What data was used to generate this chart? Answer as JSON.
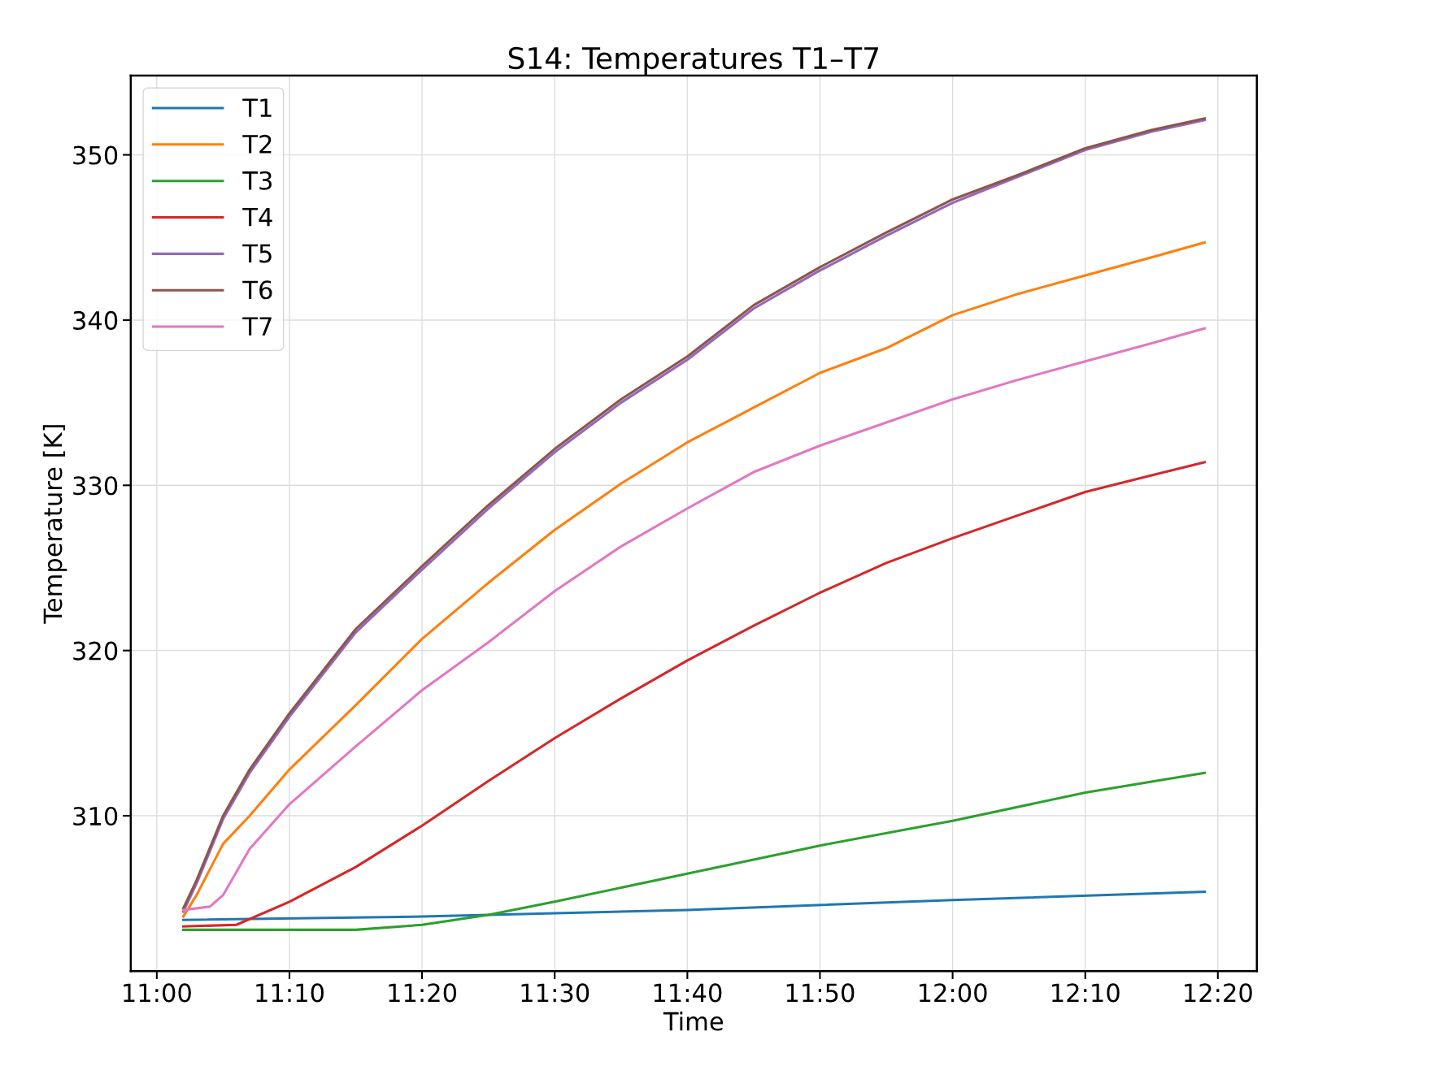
{
  "chart_data": {
    "type": "line",
    "title": "S14: Temperatures T1–T7",
    "xlabel": "Time",
    "ylabel": "Temperature [K]",
    "xlim": [
      10.9673,
      12.3823
    ],
    "ylim": [
      300.6,
      354.8
    ],
    "xticks": [
      {
        "value": 11.0,
        "label": "11:00"
      },
      {
        "value": 11.1667,
        "label": "11:10"
      },
      {
        "value": 11.3333,
        "label": "11:20"
      },
      {
        "value": 11.5,
        "label": "11:30"
      },
      {
        "value": 11.6667,
        "label": "11:40"
      },
      {
        "value": 11.8333,
        "label": "11:50"
      },
      {
        "value": 12.0,
        "label": "12:00"
      },
      {
        "value": 12.1667,
        "label": "12:10"
      },
      {
        "value": 12.3333,
        "label": "12:20"
      }
    ],
    "yticks": [
      310,
      320,
      330,
      340,
      350
    ],
    "grid": true,
    "legend": "top left",
    "marker": "none",
    "line_style": "solid",
    "series": [
      {
        "name": "T1",
        "color": "#1f77b4",
        "x": [
          11.0333,
          11.3333,
          11.6667,
          12.0,
          12.3167
        ],
        "values": [
          303.7,
          303.9,
          304.3,
          304.9,
          305.4
        ]
      },
      {
        "name": "T2",
        "color": "#ff7f0e",
        "x": [
          11.0333,
          11.05,
          11.0833,
          11.1167,
          11.1667,
          11.25,
          11.3333,
          11.4167,
          11.5,
          11.5833,
          11.6667,
          11.75,
          11.8333,
          11.9167,
          12.0,
          12.0833,
          12.1667,
          12.25,
          12.3167
        ],
        "values": [
          303.9,
          305.2,
          308.3,
          310.0,
          312.8,
          316.7,
          320.7,
          324.1,
          327.3,
          330.1,
          332.6,
          334.7,
          336.8,
          338.3,
          340.3,
          341.6,
          342.7,
          343.8,
          344.7
        ]
      },
      {
        "name": "T3",
        "color": "#2ca02c",
        "x": [
          11.0333,
          11.25,
          11.3333,
          11.4167,
          11.5,
          11.6667,
          11.8333,
          12.0,
          12.1667,
          12.3167
        ],
        "values": [
          303.1,
          303.1,
          303.4,
          304.0,
          304.8,
          306.5,
          308.2,
          309.7,
          311.4,
          312.6
        ]
      },
      {
        "name": "T4",
        "color": "#d62728",
        "x": [
          11.0333,
          11.1,
          11.1667,
          11.25,
          11.3333,
          11.4167,
          11.5,
          11.5833,
          11.6667,
          11.75,
          11.8333,
          11.9167,
          12.0,
          12.0833,
          12.1667,
          12.25,
          12.3167
        ],
        "values": [
          303.3,
          303.4,
          304.8,
          306.9,
          309.4,
          312.1,
          314.7,
          317.1,
          319.4,
          321.5,
          323.5,
          325.3,
          326.8,
          328.2,
          329.6,
          330.6,
          331.4
        ]
      },
      {
        "name": "T5",
        "color": "#9467bd",
        "x": [
          11.0333,
          11.05,
          11.0833,
          11.1167,
          11.1667,
          11.25,
          11.3333,
          11.4167,
          11.5,
          11.5833,
          11.6667,
          11.75,
          11.8333,
          11.9167,
          12.0,
          12.0833,
          12.1667,
          12.25,
          12.3167
        ],
        "values": [
          304.2,
          305.9,
          309.8,
          312.6,
          316.0,
          321.1,
          324.9,
          328.6,
          332.0,
          335.0,
          337.6,
          340.7,
          343.0,
          345.1,
          347.1,
          348.7,
          350.3,
          351.4,
          352.1
        ]
      },
      {
        "name": "T6",
        "color": "#8c564b",
        "x": [
          11.0333,
          11.05,
          11.0833,
          11.1167,
          11.1667,
          11.25,
          11.3333,
          11.4167,
          11.5,
          11.5833,
          11.6667,
          11.75,
          11.8333,
          11.9167,
          12.0,
          12.0833,
          12.1667,
          12.25,
          12.3167
        ],
        "values": [
          304.4,
          306.1,
          310.0,
          312.8,
          316.2,
          321.3,
          325.1,
          328.8,
          332.2,
          335.2,
          337.8,
          340.9,
          343.2,
          345.3,
          347.3,
          348.8,
          350.4,
          351.5,
          352.2
        ]
      },
      {
        "name": "T7",
        "color": "#e377c2",
        "x": [
          11.0333,
          11.0667,
          11.0833,
          11.1167,
          11.1667,
          11.25,
          11.3333,
          11.4167,
          11.5,
          11.5833,
          11.6667,
          11.75,
          11.8333,
          11.9167,
          12.0,
          12.0833,
          12.1667,
          12.25,
          12.3167
        ],
        "values": [
          304.3,
          304.5,
          305.2,
          308.0,
          310.7,
          314.2,
          317.6,
          320.5,
          323.6,
          326.3,
          328.6,
          330.8,
          332.4,
          333.8,
          335.2,
          336.4,
          337.5,
          338.6,
          339.5
        ]
      }
    ]
  }
}
